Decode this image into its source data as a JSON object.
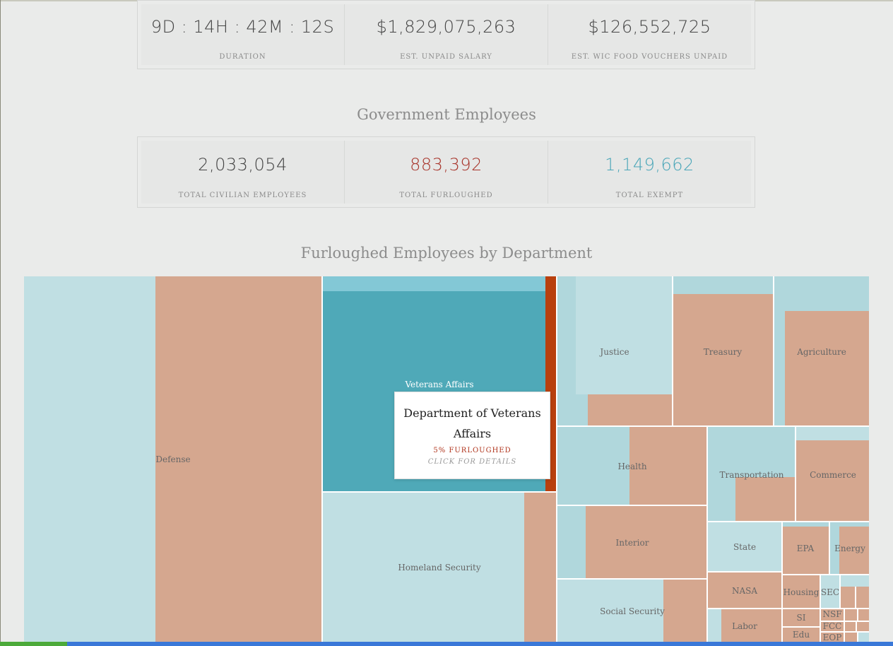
{
  "shutdown_stats": [
    {
      "value": "9D : 14H : 42M : 12S",
      "label": "DURATION"
    },
    {
      "value": "$1,829,075,263",
      "label": "EST. UNPAID SALARY"
    },
    {
      "value": "$126,552,725",
      "label": "EST. WIC FOOD VOUCHERS UNPAID"
    }
  ],
  "employees_title": "Government Employees",
  "employee_stats": [
    {
      "value": "2,033,054",
      "label": "TOTAL CIVILIAN EMPLOYEES",
      "color": "#444444"
    },
    {
      "value": "883,392",
      "label": "TOTAL FURLOUGHED",
      "color": "#a8342a"
    },
    {
      "value": "1,149,662",
      "label": "TOTAL EXEMPT",
      "color": "#4aa6b8"
    }
  ],
  "treemap_title": "Furloughed Employees by Department",
  "colors": {
    "exempt": "#c0dfe3",
    "exempt_alt": "#b0d7dc",
    "furloughed": "#d5a78f",
    "highlight_exempt": "#4fa9b8",
    "highlight_band": "#83c8d6",
    "highlight_furloughed": "#b8400e"
  },
  "tooltip": {
    "title": "Department of Veterans Affairs",
    "percent": "5% FURLOUGHED",
    "action": "CLICK FOR DETAILS"
  },
  "chart_data": {
    "type": "treemap",
    "title": "Furloughed Employees by Department",
    "departments": [
      {
        "name": "Defense",
        "status": "exempt+furloughed"
      },
      {
        "name": "Veterans Affairs",
        "furloughed_pct": 5,
        "highlighted": true
      },
      {
        "name": "Homeland Security"
      },
      {
        "name": "Justice"
      },
      {
        "name": "Treasury"
      },
      {
        "name": "Agriculture"
      },
      {
        "name": "Health"
      },
      {
        "name": "Transportation"
      },
      {
        "name": "Commerce"
      },
      {
        "name": "Interior"
      },
      {
        "name": "State"
      },
      {
        "name": "EPA"
      },
      {
        "name": "Energy"
      },
      {
        "name": "Social Security"
      },
      {
        "name": "NASA"
      },
      {
        "name": "Housing"
      },
      {
        "name": "SEC"
      },
      {
        "name": "SI"
      },
      {
        "name": "NSF"
      },
      {
        "name": "FCC"
      },
      {
        "name": "Labor"
      },
      {
        "name": "Edu"
      },
      {
        "name": "EOP"
      }
    ]
  }
}
